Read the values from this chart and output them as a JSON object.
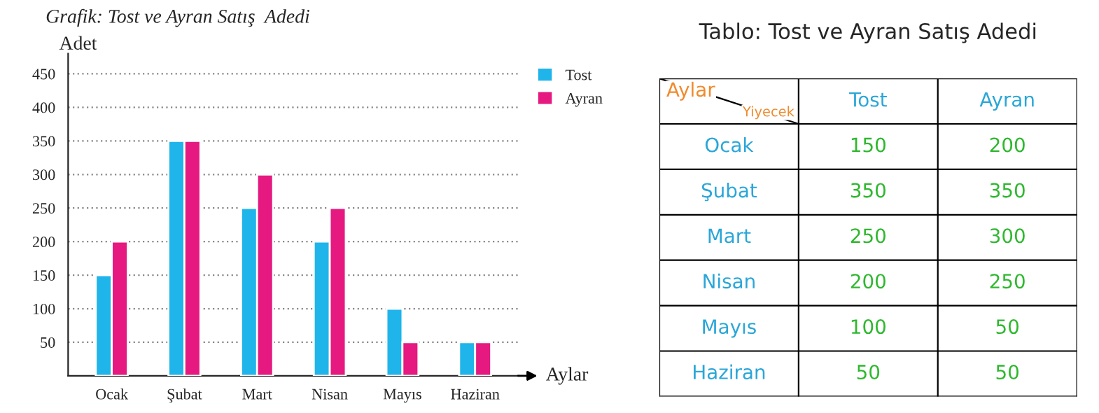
{
  "chart_data": [
    {
      "type": "bar",
      "title": "Grafik: Tost ve Ayran Satış  Adedi",
      "ylabel": "Adet",
      "xlabel": "Aylar",
      "categories": [
        "Ocak",
        "Şubat",
        "Mart",
        "Nisan",
        "Mayıs",
        "Haziran"
      ],
      "series": [
        {
          "name": "Tost",
          "color": "#1fb4ea",
          "values": [
            150,
            350,
            250,
            200,
            100,
            50
          ]
        },
        {
          "name": "Ayran",
          "color": "#e5197f",
          "values": [
            200,
            350,
            300,
            250,
            50,
            50
          ]
        }
      ],
      "ylim": [
        0,
        480
      ],
      "yticks": [
        50,
        100,
        150,
        200,
        250,
        300,
        350,
        400,
        450
      ],
      "grid": "y",
      "legend": "top right"
    },
    {
      "type": "other",
      "title": "Tablo: Tost ve Ayran Satış Adedi",
      "categories": [
        "Ocak",
        "Şubat",
        "Mart",
        "Nisan",
        "Mayıs",
        "Haziran"
      ],
      "series": [
        {
          "name": "Tost",
          "values": [
            150,
            350,
            250,
            200,
            100,
            50
          ]
        },
        {
          "name": "Ayran",
          "values": [
            200,
            350,
            300,
            250,
            50,
            50
          ]
        }
      ],
      "data_labels": true,
      "annotations": [
        "Aylar",
        "Yiyecek"
      ]
    }
  ]
}
